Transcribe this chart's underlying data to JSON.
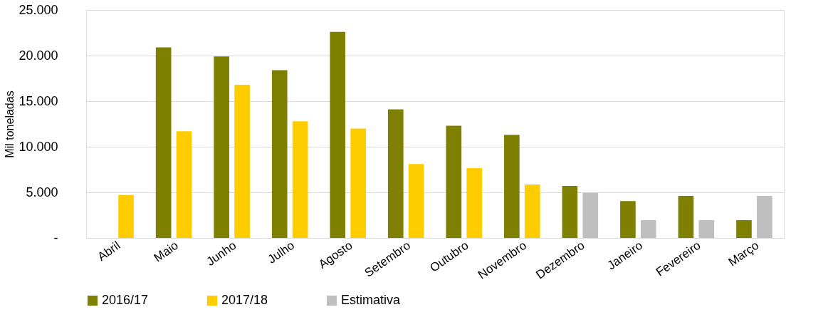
{
  "chart_data": {
    "type": "bar",
    "ylabel": "Mil toneladas",
    "categories": [
      "Abril",
      "Maio",
      "Junho",
      "Julho",
      "Agosto",
      "Setembro",
      "Outubro",
      "Novembro",
      "Dezembro",
      "Janeiro",
      "Fevereiro",
      "Março"
    ],
    "series": [
      {
        "name": "2016/17",
        "color": "#808000",
        "values": [
          null,
          20900,
          19900,
          18400,
          22600,
          14100,
          12300,
          11300,
          5700,
          4050,
          4600,
          1950
        ]
      },
      {
        "name": "2017/18",
        "color": "#ffcc00",
        "values": [
          4700,
          11700,
          16800,
          12800,
          12000,
          8100,
          7650,
          5850,
          null,
          null,
          null,
          null
        ]
      },
      {
        "name": "Estimativa",
        "color": "#bfbfbf",
        "values": [
          null,
          null,
          null,
          null,
          null,
          null,
          null,
          null,
          4950,
          1950,
          1950,
          4600
        ]
      }
    ],
    "ylim": [
      0,
      25000
    ],
    "yticks": [
      {
        "value": 0,
        "label": "-"
      },
      {
        "value": 5000,
        "label": "5.000"
      },
      {
        "value": 10000,
        "label": "10.000"
      },
      {
        "value": 15000,
        "label": "15.000"
      },
      {
        "value": 20000,
        "label": "20.000"
      },
      {
        "value": 25000,
        "label": "25.000"
      }
    ],
    "grid": "y",
    "legend": "bottom"
  }
}
